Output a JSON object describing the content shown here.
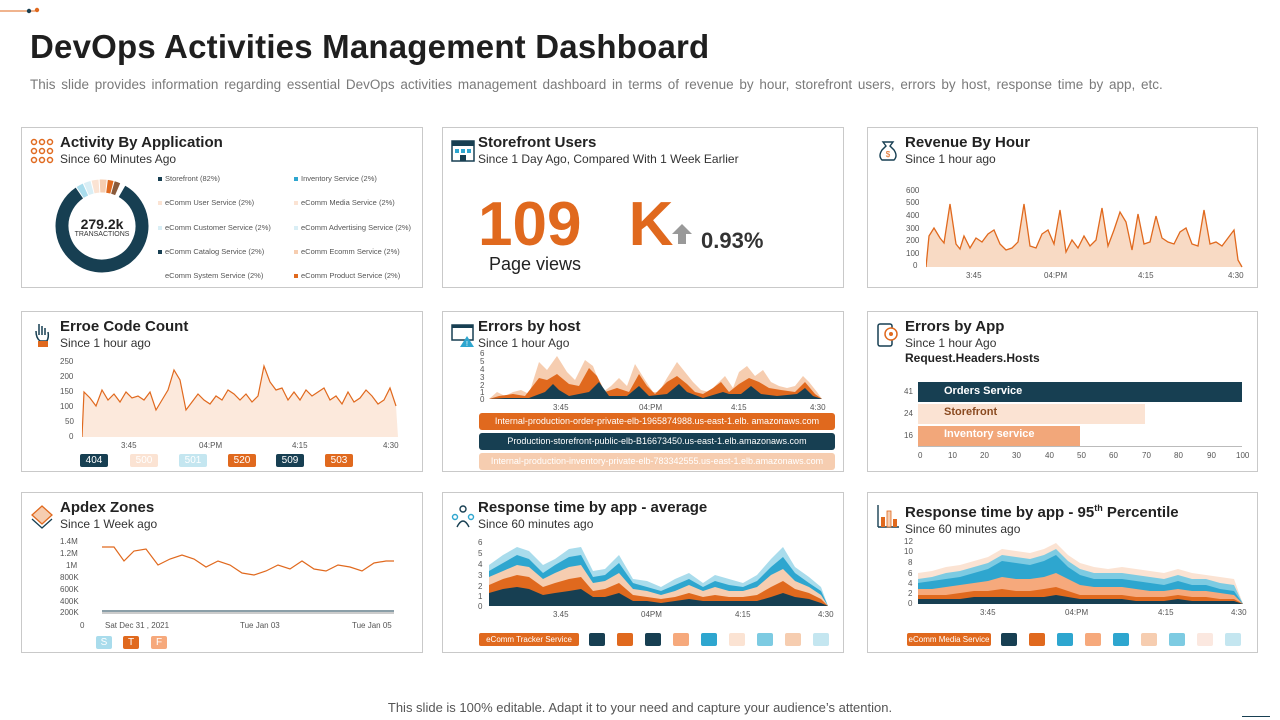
{
  "page": {
    "title": "DevOps Activities Management Dashboard",
    "subtitle": "This slide provides information regarding essential DevOps activities management dashboard in terms of revenue by hour, storefront users, errors by host, response time by app, etc.",
    "footer": "This slide is 100% editable. Adapt it to your need and capture your audience’s attention."
  },
  "colors": {
    "navy": "#173f52",
    "orange": "#e0691e",
    "peach": "#f6cdb0",
    "light_peach": "#fbe3d3",
    "blue": "#2ea6cf",
    "light_blue": "#a9dcec"
  },
  "activity": {
    "title": "Activity By Application",
    "subtitle": "Since 60 Minutes Ago",
    "center_value": "279.2k",
    "center_label": "TRANSACTIONS",
    "legend": [
      "Storefront (82%)",
      "Inventory Service (2%)",
      "eComm User Service (2%)",
      "eComm Media Service (2%)",
      "eComm Customer Service (2%)",
      "eComm Advertising Service (2%)",
      "eComm Catalog Service (2%)",
      "eComm Ecomm Service (2%)",
      "eComm System Service (2%)",
      "eComm Product Service (2%)"
    ]
  },
  "storefront": {
    "title": "Storefront Users",
    "subtitle": "Since 1 Day Ago, Compared With 1 Week Earlier",
    "value": "109 K",
    "change": "0.93%",
    "caption": "Page views"
  },
  "revenue": {
    "title": "Revenue By Hour",
    "subtitle": "Since 1 hour ago",
    "y_ticks": [
      "600",
      "500",
      "400",
      "300",
      "200",
      "100",
      "0"
    ],
    "x_ticks": [
      "3:45",
      "04:PM",
      "4:15",
      "4:30"
    ]
  },
  "error_code": {
    "title": "Erroe Code Count",
    "subtitle": "Since 1 hour ago",
    "y_ticks": [
      "250",
      "200",
      "150",
      "100",
      "50",
      "0"
    ],
    "x_ticks": [
      "3:45",
      "04:PM",
      "4:15",
      "4:30"
    ],
    "codes": [
      "404",
      "500",
      "501",
      "520",
      "509",
      "503"
    ]
  },
  "errors_host": {
    "title": "Errors by host",
    "subtitle": "Since 1 hour Ago",
    "y_ticks": [
      "6",
      "5",
      "4",
      "3",
      "2",
      "1",
      "0"
    ],
    "x_ticks": [
      "3:45",
      "04:PM",
      "4:15",
      "4:30"
    ],
    "hosts": [
      "Internal-production-order-private-elb-1965874988.us-east-1.elb. amazonaws.com",
      "Production-storefront-public-elb-B16673450.us-east-1.elb.amazonaws.com",
      "Internal-production-inventory-private-elb-783342555.us-east-1.elb.amazonaws.com"
    ]
  },
  "errors_app": {
    "title": "Errors by App",
    "subtitle": "Since 1 hour Ago",
    "heading": "Request.Headers.Hosts",
    "bars": [
      {
        "label": "Orders Service",
        "value": 100,
        "count": "41"
      },
      {
        "label": "Storefront",
        "value": 70,
        "count": "24"
      },
      {
        "label": "Inventory service",
        "value": 50,
        "count": "16"
      }
    ],
    "x_ticks": [
      "0",
      "10",
      "20",
      "30",
      "40",
      "50",
      "60",
      "70",
      "80",
      "90",
      "100"
    ]
  },
  "apdex": {
    "title": "Apdex Zones",
    "subtitle": "Since 1 Week ago",
    "y_ticks": [
      "1.4M",
      "1.2M",
      "1M",
      "800K",
      "600K",
      "400K",
      "200K",
      "0"
    ],
    "x_ticks": [
      "Sat Dec 31 , 2021",
      "Tue Jan 03",
      "Tue Jan 05"
    ],
    "chips": [
      "S",
      "T",
      "F"
    ]
  },
  "response_avg": {
    "title": "Response time by app - average",
    "subtitle": "Since 60 minutes ago",
    "y_ticks": [
      "6",
      "5",
      "4",
      "3",
      "2",
      "1",
      "0"
    ],
    "x_ticks": [
      "3.45",
      "04PM",
      "4:15",
      "4:30"
    ],
    "legend_label": "eComm Tracker Service"
  },
  "response_95": {
    "title_main": "Response time by app - 95",
    "title_sup": "th",
    "title_end": " Percentile",
    "subtitle": "Since 60 minutes ago",
    "y_ticks": [
      "12",
      "10",
      "8",
      "6",
      "4",
      "2",
      "0"
    ],
    "x_ticks": [
      "3:45",
      "04:PM",
      "4:15",
      "4:30"
    ],
    "legend_label": "eComm Media Service"
  }
}
